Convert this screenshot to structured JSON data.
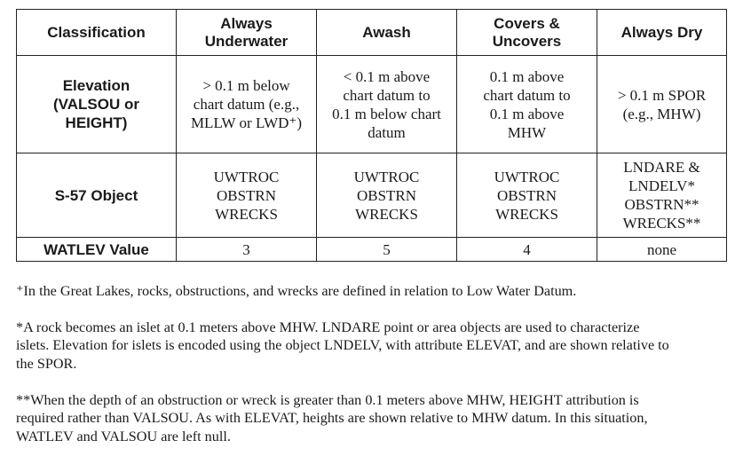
{
  "table": {
    "headers": [
      "Classification",
      "Always\nUnderwater",
      "Awash",
      "Covers &\nUncovers",
      "Always Dry"
    ],
    "rows": [
      {
        "label": "Elevation\n(VALSOU or\nHEIGHT)",
        "cells": [
          "> 0.1 m below\nchart datum (e.g.,\nMLLW or LWD⁺)",
          "< 0.1 m above\nchart datum to\n0.1 m below chart\ndatum",
          "0.1 m above\nchart datum to\n0.1 m above\nMHW",
          "> 0.1 m SPOR\n(e.g., MHW)"
        ]
      },
      {
        "label": "S-57 Object",
        "cells": [
          "UWTROC\nOBSTRN\nWRECKS",
          "UWTROC\nOBSTRN\nWRECKS",
          "UWTROC\nOBSTRN\nWRECKS",
          "LNDARE &\nLNDELV*\nOBSTRN**\nWRECKS**"
        ]
      },
      {
        "label": "WATLEV Value",
        "cells": [
          "3",
          "5",
          "4",
          "none"
        ]
      }
    ]
  },
  "notes": [
    "⁺In the Great Lakes, rocks, obstructions, and wrecks are defined in relation to Low Water Datum.",
    "*A rock becomes an islet at 0.1 meters above MHW. LNDARE point or area objects are used to characterize\nislets. Elevation for islets is encoded using the object LNDELV, with attribute ELEVAT, and are shown relative to\nthe SPOR.",
    "**When the depth of an obstruction or wreck is greater than 0.1 meters above MHW, HEIGHT attribution is\nrequired rather than VALSOU. As with ELEVAT, heights are shown relative to MHW datum. In this situation,\nWATLEV and VALSOU are left null."
  ]
}
